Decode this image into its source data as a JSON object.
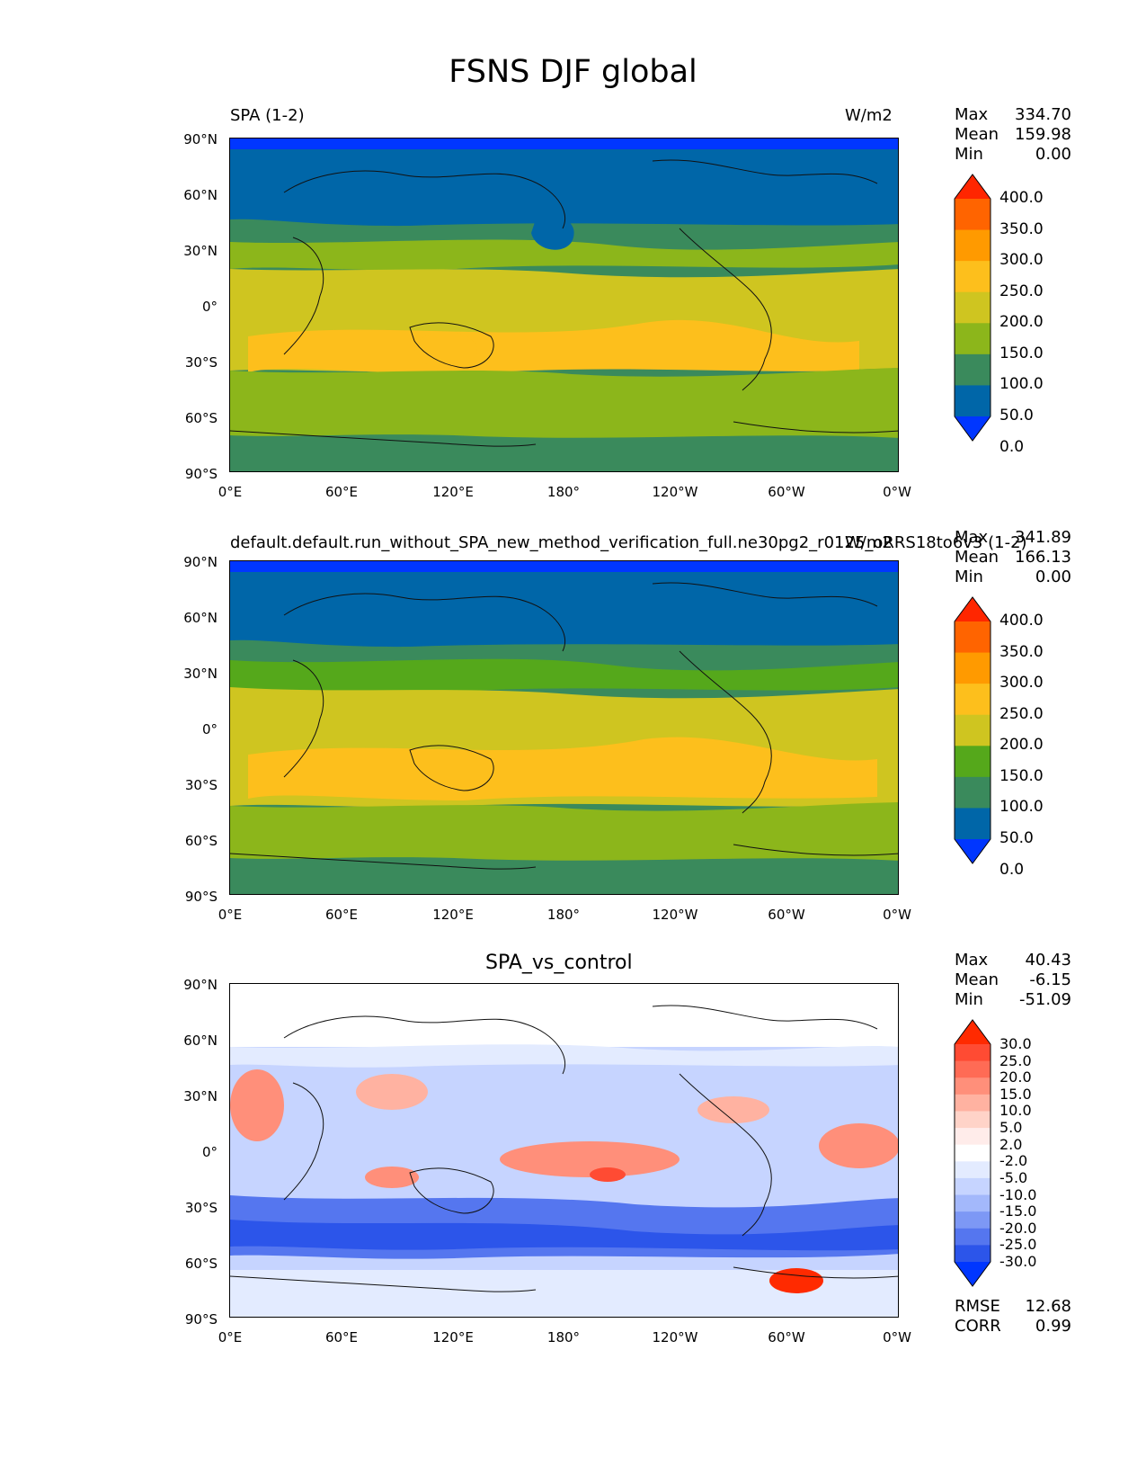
{
  "figure": {
    "title": "FSNS DJF global"
  },
  "panels": [
    {
      "left_title": "SPA (1-2)",
      "right_title": "W/m2",
      "center_title": "",
      "stats": [
        {
          "label": "Max",
          "value": "334.70"
        },
        {
          "label": "Mean",
          "value": "159.98"
        },
        {
          "label": "Min",
          "value": "0.00"
        }
      ],
      "colorbar": {
        "labels": [
          "400.0",
          "350.0",
          "300.0",
          "250.0",
          "200.0",
          "150.0",
          "100.0",
          "50.0",
          "0.0"
        ],
        "colors": [
          "#ff2600",
          "#ff6400",
          "#ff9a00",
          "#fdbf1c",
          "#cfc520",
          "#8cb61b",
          "#3a8a5c",
          "#0066a8",
          "#0036ff"
        ]
      }
    },
    {
      "left_title": "default.default.run_without_SPA_new_method_verification_full.ne30pg2_r0125_oRRS18to6v3 (1-2)",
      "right_title": "W/m2",
      "center_title": "",
      "stats": [
        {
          "label": "Max",
          "value": "341.89"
        },
        {
          "label": "Mean",
          "value": "166.13"
        },
        {
          "label": "Min",
          "value": "0.00"
        }
      ],
      "colorbar": {
        "labels": [
          "400.0",
          "350.0",
          "300.0",
          "250.0",
          "200.0",
          "150.0",
          "100.0",
          "50.0",
          "0.0"
        ],
        "colors": [
          "#ff2600",
          "#ff6400",
          "#ff9a00",
          "#fdbf1c",
          "#cfc520",
          "#55a81b",
          "#3a8a5c",
          "#0066a8",
          "#0036ff"
        ]
      }
    },
    {
      "left_title": "",
      "right_title": "",
      "center_title": "SPA_vs_control",
      "stats": [
        {
          "label": "Max",
          "value": "40.43"
        },
        {
          "label": "Mean",
          "value": "-6.15"
        },
        {
          "label": "Min",
          "value": "-51.09"
        }
      ],
      "metrics": [
        {
          "label": "RMSE",
          "value": "12.68"
        },
        {
          "label": "CORR",
          "value": "0.99"
        }
      ],
      "colorbar": {
        "labels": [
          "30.0",
          "25.0",
          "20.0",
          "15.0",
          "10.0",
          "5.0",
          "2.0",
          "-2.0",
          "-5.0",
          "-10.0",
          "-15.0",
          "-20.0",
          "-25.0",
          "-30.0"
        ],
        "colors": [
          "#ff2a00",
          "#ff4b33",
          "#ff6b55",
          "#ff8f7a",
          "#ffb2a1",
          "#ffd3c8",
          "#ffecea",
          "#ffffff",
          "#e3ebff",
          "#c6d4ff",
          "#a3b8fb",
          "#7d98f5",
          "#5576ef",
          "#2c55ea",
          "#0036ff"
        ]
      }
    }
  ],
  "axes": {
    "y_ticks": [
      "90°N",
      "60°N",
      "30°N",
      "0°",
      "30°S",
      "60°S",
      "90°S"
    ],
    "x_ticks": [
      "0°E",
      "60°E",
      "120°E",
      "180°",
      "120°W",
      "60°W",
      "0°W"
    ]
  },
  "chart_data": [
    {
      "type": "heatmap",
      "title": "SPA (1-2)",
      "units": "W/m2",
      "stats": {
        "max": 334.7,
        "mean": 159.98,
        "min": 0.0
      },
      "levels": [
        0,
        50,
        100,
        150,
        200,
        250,
        300,
        350,
        400
      ],
      "xlim": [
        0,
        360
      ],
      "ylim": [
        -90,
        90
      ]
    },
    {
      "type": "heatmap",
      "title": "default.default.run_without_SPA_new_method_verification_full.ne30pg2_r0125_oRRS18to6v3 (1-2)",
      "units": "W/m2",
      "stats": {
        "max": 341.89,
        "mean": 166.13,
        "min": 0.0
      },
      "levels": [
        0,
        50,
        100,
        150,
        200,
        250,
        300,
        350,
        400
      ],
      "xlim": [
        0,
        360
      ],
      "ylim": [
        -90,
        90
      ]
    },
    {
      "type": "heatmap",
      "title": "SPA_vs_control",
      "stats": {
        "max": 40.43,
        "mean": -6.15,
        "min": -51.09
      },
      "levels": [
        -30,
        -25,
        -20,
        -15,
        -10,
        -5,
        -2,
        2,
        5,
        10,
        15,
        20,
        25,
        30
      ],
      "rmse": 12.68,
      "corr": 0.99,
      "xlim": [
        0,
        360
      ],
      "ylim": [
        -90,
        90
      ]
    }
  ]
}
